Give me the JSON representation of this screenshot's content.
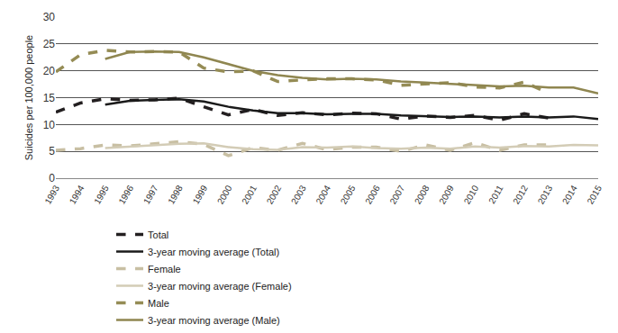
{
  "chart_data": {
    "type": "line",
    "y_label": "Suicides per 100,000 people",
    "x": [
      1993,
      1994,
      1995,
      1996,
      1997,
      1998,
      1999,
      2000,
      2001,
      2002,
      2003,
      2004,
      2005,
      2006,
      2007,
      2008,
      2009,
      2010,
      2011,
      2012,
      2013,
      2014,
      2015
    ],
    "xlim": [
      1993,
      2015
    ],
    "xticks": [
      1993,
      1994,
      1995,
      1996,
      1997,
      1998,
      1999,
      2000,
      2001,
      2002,
      2003,
      2004,
      2005,
      2006,
      2007,
      2008,
      2009,
      2010,
      2011,
      2012,
      2013,
      2014,
      2015
    ],
    "ylim": [
      0,
      30
    ],
    "yticks": [
      0,
      5,
      10,
      15,
      20,
      25,
      30
    ],
    "grid": true,
    "legend": "bottom",
    "series": [
      {
        "name": "Total",
        "color": "#231f20",
        "line_style": "dash",
        "values": [
          12.3,
          14.0,
          14.8,
          14.5,
          14.6,
          14.9,
          13.3,
          11.8,
          12.8,
          11.7,
          12.2,
          11.8,
          12.1,
          12.0,
          11.0,
          11.6,
          11.3,
          11.7,
          10.8,
          12.0,
          11.2,
          null,
          null
        ]
      },
      {
        "name": "3-year moving average (Total)",
        "color": "#1a1a1a",
        "line_style": "solid",
        "values": [
          null,
          null,
          13.7,
          14.4,
          14.6,
          14.7,
          14.3,
          13.3,
          12.6,
          12.1,
          12.1,
          11.9,
          12.0,
          12.0,
          11.7,
          11.5,
          11.4,
          11.5,
          11.3,
          11.5,
          11.3,
          11.5,
          11.0
        ]
      },
      {
        "name": "Female",
        "color": "#c8bfa3",
        "line_style": "dash",
        "values": [
          5.2,
          5.5,
          6.2,
          6.0,
          6.4,
          6.8,
          6.3,
          4.2,
          5.7,
          5.2,
          6.5,
          5.3,
          5.8,
          5.8,
          5.0,
          6.2,
          5.2,
          6.6,
          5.2,
          6.2,
          6.2,
          null,
          null
        ]
      },
      {
        "name": "3-year moving average (Female)",
        "color": "#d3ccb6",
        "line_style": "solid",
        "values": [
          null,
          null,
          5.6,
          5.9,
          6.2,
          6.4,
          6.5,
          5.8,
          5.4,
          5.3,
          5.8,
          5.7,
          5.9,
          5.6,
          5.5,
          5.7,
          5.5,
          5.9,
          5.7,
          6.0,
          5.9,
          6.2,
          6.1
        ]
      },
      {
        "name": "Male",
        "color": "#958c55",
        "line_style": "dash",
        "values": [
          19.8,
          23.0,
          23.8,
          23.5,
          23.6,
          23.5,
          20.5,
          19.8,
          20.0,
          18.0,
          18.3,
          18.5,
          18.5,
          18.3,
          17.3,
          17.5,
          17.8,
          17.0,
          16.8,
          17.9,
          15.8,
          null,
          null
        ]
      },
      {
        "name": "3-year moving average (Male)",
        "color": "#8f8650",
        "line_style": "solid",
        "values": [
          null,
          null,
          22.2,
          23.5,
          23.6,
          23.5,
          22.5,
          21.3,
          20.0,
          19.2,
          18.7,
          18.4,
          18.5,
          18.4,
          18.0,
          17.8,
          17.6,
          17.4,
          17.1,
          17.2,
          16.9,
          16.9,
          15.8
        ]
      }
    ]
  }
}
